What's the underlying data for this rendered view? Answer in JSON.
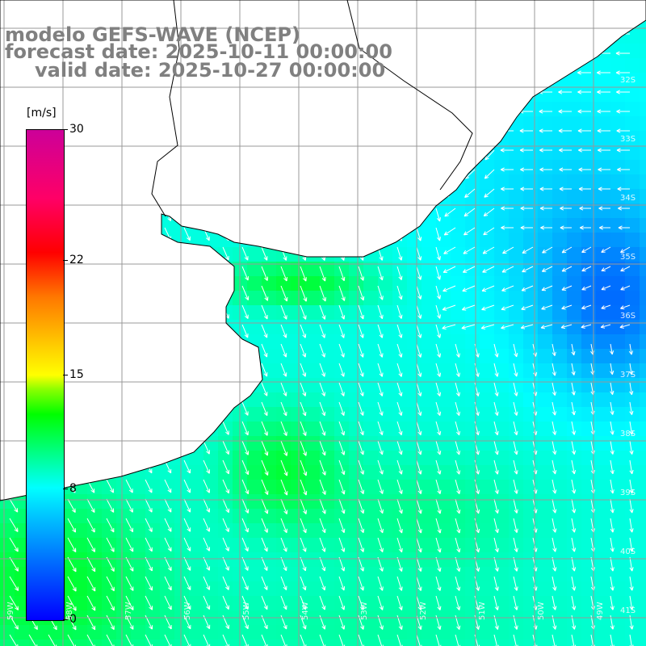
{
  "title": {
    "line1": "modelo GEFS-WAVE (NCEP)",
    "line2": "forecast date: 2025-10-11 00:00:00",
    "line3": "valid date: 2025-10-27 00:00:00"
  },
  "colorbar": {
    "units": "[m/s]",
    "ticks": [
      {
        "value": 30,
        "label": "30"
      },
      {
        "value": 22,
        "label": "22"
      },
      {
        "value": 15,
        "label": "15"
      },
      {
        "value": 8,
        "label": "8"
      },
      {
        "value": 0,
        "label": "0"
      }
    ],
    "min": 0,
    "max": 30
  },
  "map": {
    "lat_labels": [
      "32S",
      "33S",
      "34S",
      "35S",
      "36S",
      "37S",
      "38S",
      "39S",
      "40S",
      "41S"
    ],
    "lon_labels": [
      "59W",
      "58W",
      "57W",
      "56W",
      "55W",
      "54W",
      "53W",
      "52W",
      "51W",
      "50W",
      "49W"
    ],
    "colors": {
      "land": "#ffffff",
      "grid": "#999999",
      "coast": "#000000",
      "arrows": "#ffffff"
    }
  }
}
